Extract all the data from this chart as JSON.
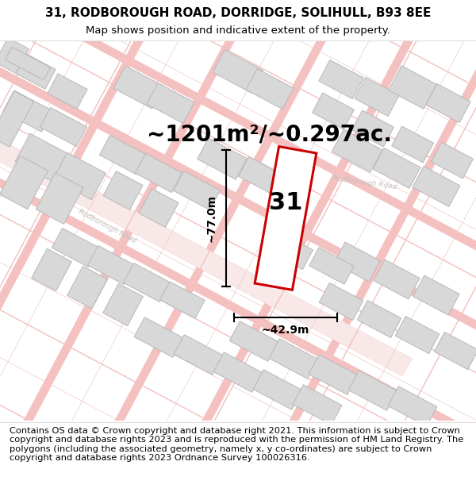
{
  "title_line1": "31, RODBOROUGH ROAD, DORRIDGE, SOLIHULL, B93 8EE",
  "title_line2": "Map shows position and indicative extent of the property.",
  "footer_text": "Contains OS data © Crown copyright and database right 2021. This information is subject to Crown copyright and database rights 2023 and is reproduced with the permission of HM Land Registry. The polygons (including the associated geometry, namely x, y co-ordinates) are subject to Crown copyright and database rights 2023 Ordnance Survey 100026316.",
  "area_label": "~1201m²/~0.297ac.",
  "width_label": "~42.9m",
  "height_label": "~77.0m",
  "plot_number": "31",
  "bg_color": "#ffffff",
  "street_color": "#f5c0c0",
  "building_color": "#d8d8d8",
  "building_edge_color": "#b8b8b8",
  "highlight_color": "#cc0000",
  "road_label_color": "#bbbbbb",
  "title_fontsize": 11,
  "subtitle_fontsize": 9.5,
  "footer_fontsize": 8.2,
  "area_fontsize": 20,
  "dim_fontsize": 10,
  "plot_label_fontsize": 22
}
